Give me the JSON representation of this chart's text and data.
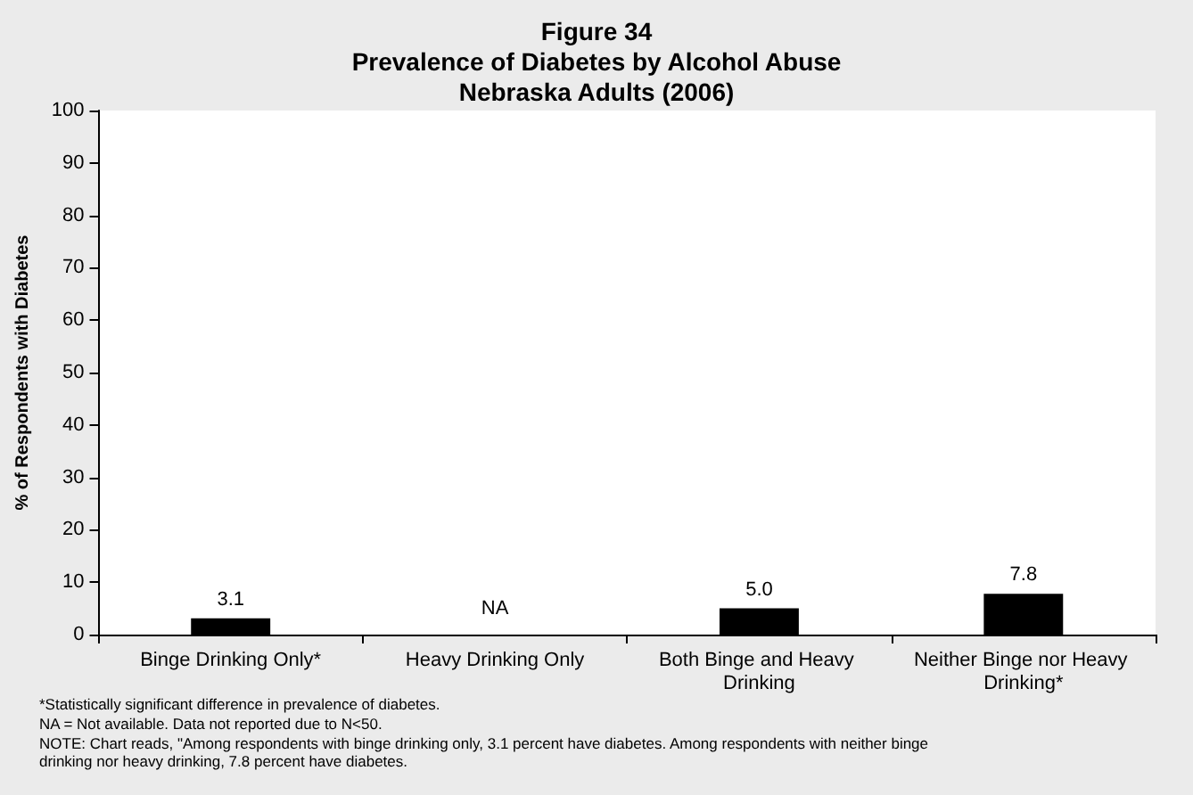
{
  "chart_data": {
    "type": "bar",
    "title": "Figure 34\nPrevalence of Diabetes by Alcohol Abuse\nNebraska Adults (2006)",
    "ylabel": "% of Respondents with Diabetes",
    "categories": [
      "Binge Drinking Only*",
      "Heavy Drinking Only",
      "Both Binge and Heavy Drinking",
      "Neither Binge nor Heavy Drinking*"
    ],
    "values": [
      3.1,
      null,
      5.0,
      7.8
    ],
    "value_labels": [
      "3.1",
      "NA",
      "5.0",
      "7.8"
    ],
    "color": "#000000",
    "ylim": [
      0,
      100
    ],
    "yticks": [
      0,
      10,
      20,
      30,
      40,
      50,
      60,
      70,
      80,
      90,
      100
    ],
    "grid": false,
    "annotations": [
      "*Statistically significant difference in prevalence of diabetes.",
      "NA = Not available. Data not reported due to N<50.",
      "NOTE: Chart reads, \"Among respondents with binge drinking only, 3.1 percent have diabetes. Among respondents with neither binge drinking nor heavy drinking, 7.8 percent have diabetes."
    ]
  }
}
